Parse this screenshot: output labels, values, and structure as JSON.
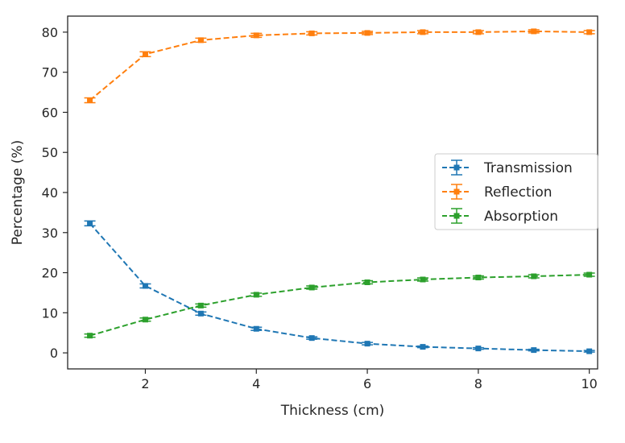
{
  "chart_data": {
    "type": "line",
    "title": "",
    "xlabel": "Thickness (cm)",
    "ylabel": "Percentage (%)",
    "xlim": [
      0.6,
      10.15
    ],
    "ylim": [
      -4,
      84
    ],
    "xticks": [
      2,
      4,
      6,
      8,
      10
    ],
    "yticks": [
      0,
      10,
      20,
      30,
      40,
      50,
      60,
      70,
      80
    ],
    "grid": false,
    "legend_position": "center-right",
    "x": [
      1,
      2,
      3,
      4,
      5,
      6,
      7,
      8,
      9,
      10
    ],
    "series": [
      {
        "name": "Transmission",
        "color": "#1f77b4",
        "values": [
          32.3,
          16.7,
          9.8,
          6.0,
          3.7,
          2.3,
          1.5,
          1.1,
          0.7,
          0.4
        ],
        "errors": [
          0.6,
          0.5,
          0.4,
          0.4,
          0.3,
          0.3,
          0.2,
          0.2,
          0.2,
          0.2
        ]
      },
      {
        "name": "Reflection",
        "color": "#ff7f0e",
        "values": [
          63.0,
          74.5,
          78.0,
          79.2,
          79.7,
          79.8,
          80.0,
          80.0,
          80.2,
          80.0
        ],
        "errors": [
          0.6,
          0.6,
          0.5,
          0.5,
          0.4,
          0.4,
          0.4,
          0.4,
          0.4,
          0.4
        ]
      },
      {
        "name": "Absorption",
        "color": "#2ca02c",
        "values": [
          4.3,
          8.3,
          11.8,
          14.5,
          16.3,
          17.6,
          18.3,
          18.8,
          19.1,
          19.5
        ],
        "errors": [
          0.4,
          0.4,
          0.4,
          0.4,
          0.4,
          0.4,
          0.4,
          0.4,
          0.4,
          0.4
        ]
      }
    ]
  }
}
